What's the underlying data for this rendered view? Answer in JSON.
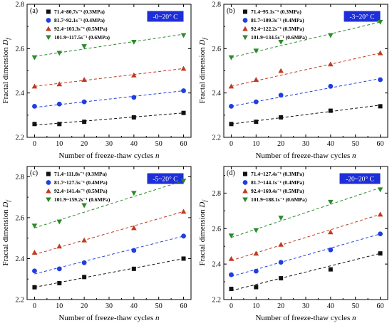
{
  "chart_data": [
    {
      "type": "scatter",
      "panel": "(a)",
      "temperature_label": "-0~20° C",
      "xlabel": "Number of freeze-thaw cycles n",
      "ylabel": "Fractal dimension Df",
      "xlim": [
        -3,
        63
      ],
      "ylim": [
        2.2,
        2.8
      ],
      "xticks": [
        0,
        10,
        20,
        30,
        40,
        50,
        60
      ],
      "yticks": [
        2.2,
        2.4,
        2.6,
        2.8
      ],
      "legend_position": "top-left",
      "grid": false,
      "x": [
        0,
        10,
        20,
        40,
        60
      ],
      "series": [
        {
          "name": "71.4~80.7s⁻¹   (0.3MPa)",
          "marker": "square",
          "color": "#111111",
          "values": [
            2.26,
            2.26,
            2.27,
            2.29,
            2.31
          ],
          "fit": [
            2.255,
            2.31
          ]
        },
        {
          "name": "81.7~92.1s⁻¹   (0.4MPa)",
          "marker": "circle",
          "color": "#1f3fe0",
          "values": [
            2.34,
            2.35,
            2.36,
            2.38,
            2.41
          ],
          "fit": [
            2.335,
            2.41
          ]
        },
        {
          "name": "92.4~103.3s⁻¹  (0.5MPa)",
          "marker": "triangle-up",
          "color": "#c03a1f",
          "values": [
            2.43,
            2.44,
            2.46,
            2.48,
            2.51
          ],
          "fit": [
            2.43,
            2.51
          ]
        },
        {
          "name": "101.9~117.5s⁻¹ (0.6MPa)",
          "marker": "triangle-down",
          "color": "#2a8a2a",
          "values": [
            2.56,
            2.58,
            2.61,
            2.63,
            2.66
          ],
          "fit": [
            2.565,
            2.665
          ]
        }
      ]
    },
    {
      "type": "scatter",
      "panel": "(b)",
      "temperature_label": "-3~20° C",
      "xlabel": "Number of freeze-thaw cycles n",
      "ylabel": "Fractal dimension Df",
      "xlim": [
        -3,
        63
      ],
      "ylim": [
        2.2,
        2.8
      ],
      "xticks": [
        0,
        10,
        20,
        30,
        40,
        50,
        60
      ],
      "yticks": [
        2.2,
        2.4,
        2.6,
        2.8
      ],
      "legend_position": "top-left",
      "grid": false,
      "x": [
        0,
        10,
        20,
        40,
        60
      ],
      "series": [
        {
          "name": "71.4~95.1s⁻¹   (0.3MPa)",
          "marker": "square",
          "color": "#111111",
          "values": [
            2.26,
            2.27,
            2.29,
            2.32,
            2.34
          ],
          "fit": [
            2.26,
            2.345
          ]
        },
        {
          "name": "81.7~109.3s⁻¹  (0.4MPa)",
          "marker": "circle",
          "color": "#1f3fe0",
          "values": [
            2.34,
            2.36,
            2.39,
            2.43,
            2.46
          ],
          "fit": [
            2.34,
            2.465
          ]
        },
        {
          "name": "92.4~122.2s⁻¹  (0.5MPa)",
          "marker": "triangle-up",
          "color": "#c03a1f",
          "values": [
            2.43,
            2.46,
            2.5,
            2.53,
            2.58
          ],
          "fit": [
            2.43,
            2.58
          ]
        },
        {
          "name": "101.9~134.5s⁻¹ (0.6MPa)",
          "marker": "triangle-down",
          "color": "#2a8a2a",
          "values": [
            2.56,
            2.59,
            2.63,
            2.66,
            2.72
          ],
          "fit": [
            2.56,
            2.72
          ]
        }
      ]
    },
    {
      "type": "scatter",
      "panel": "(c)",
      "temperature_label": "-5~20° C",
      "xlabel": "Number of freeze-thaw cycles n",
      "ylabel": "Fractal dimension Df",
      "xlim": [
        -3,
        63
      ],
      "ylim": [
        2.2,
        2.85
      ],
      "xticks": [
        0,
        10,
        20,
        30,
        40,
        50,
        60
      ],
      "yticks": [
        2.2,
        2.4,
        2.6,
        2.8
      ],
      "legend_position": "top-left",
      "grid": false,
      "x": [
        0,
        10,
        20,
        40,
        60
      ],
      "series": [
        {
          "name": "71.4~111.8s⁻¹  (0.3MPa)",
          "marker": "square",
          "color": "#111111",
          "values": [
            2.26,
            2.28,
            2.31,
            2.35,
            2.4
          ],
          "fit": [
            2.26,
            2.4
          ]
        },
        {
          "name": "81.7~127.5s⁻¹  (0.4MPa)",
          "marker": "circle",
          "color": "#1f3fe0",
          "values": [
            2.34,
            2.35,
            2.38,
            2.44,
            2.51
          ],
          "fit": [
            2.325,
            2.51
          ]
        },
        {
          "name": "92.4~141.4s⁻¹  (0.5MPa)",
          "marker": "triangle-up",
          "color": "#c03a1f",
          "values": [
            2.43,
            2.46,
            2.49,
            2.55,
            2.63
          ],
          "fit": [
            2.42,
            2.63
          ]
        },
        {
          "name": "101.9~159.2s⁻¹ (0.6MPa)",
          "marker": "triangle-down",
          "color": "#2a8a2a",
          "values": [
            2.56,
            2.58,
            2.66,
            2.72,
            2.78
          ],
          "fit": [
            2.55,
            2.78
          ]
        }
      ]
    },
    {
      "type": "scatter",
      "panel": "(d)",
      "temperature_label": "-20~20° C",
      "xlabel": "Number of freeze-thaw cycles n",
      "ylabel": "Fractal dimension Df",
      "xlim": [
        -3,
        63
      ],
      "ylim": [
        2.2,
        2.95
      ],
      "xticks": [
        0,
        10,
        20,
        30,
        40,
        50,
        60
      ],
      "yticks": [
        2.2,
        2.4,
        2.6,
        2.8
      ],
      "legend_position": "top-left",
      "grid": false,
      "x": [
        0,
        10,
        20,
        40,
        60
      ],
      "series": [
        {
          "name": "71.4~127.4s⁻¹  (0.3MPa)",
          "marker": "square",
          "color": "#111111",
          "values": [
            2.26,
            2.27,
            2.32,
            2.37,
            2.46
          ],
          "fit": [
            2.25,
            2.46
          ]
        },
        {
          "name": "81.7~144.1s⁻¹  (0.4MPa)",
          "marker": "circle",
          "color": "#1f3fe0",
          "values": [
            2.34,
            2.36,
            2.41,
            2.48,
            2.57
          ],
          "fit": [
            2.33,
            2.57
          ]
        },
        {
          "name": "92.4~169.4s⁻¹  (0.5MPa)",
          "marker": "triangle-up",
          "color": "#c03a1f",
          "values": [
            2.43,
            2.46,
            2.51,
            2.58,
            2.68
          ],
          "fit": [
            2.42,
            2.68
          ]
        },
        {
          "name": "101.9~188.1s⁻¹ (0.6MPa)",
          "marker": "triangle-down",
          "color": "#2a8a2a",
          "values": [
            2.56,
            2.59,
            2.66,
            2.75,
            2.82
          ],
          "fit": [
            2.55,
            2.83
          ]
        }
      ]
    }
  ],
  "style": {
    "temperature_box_color": "#1e2ed8",
    "axis_color": "#000000"
  }
}
